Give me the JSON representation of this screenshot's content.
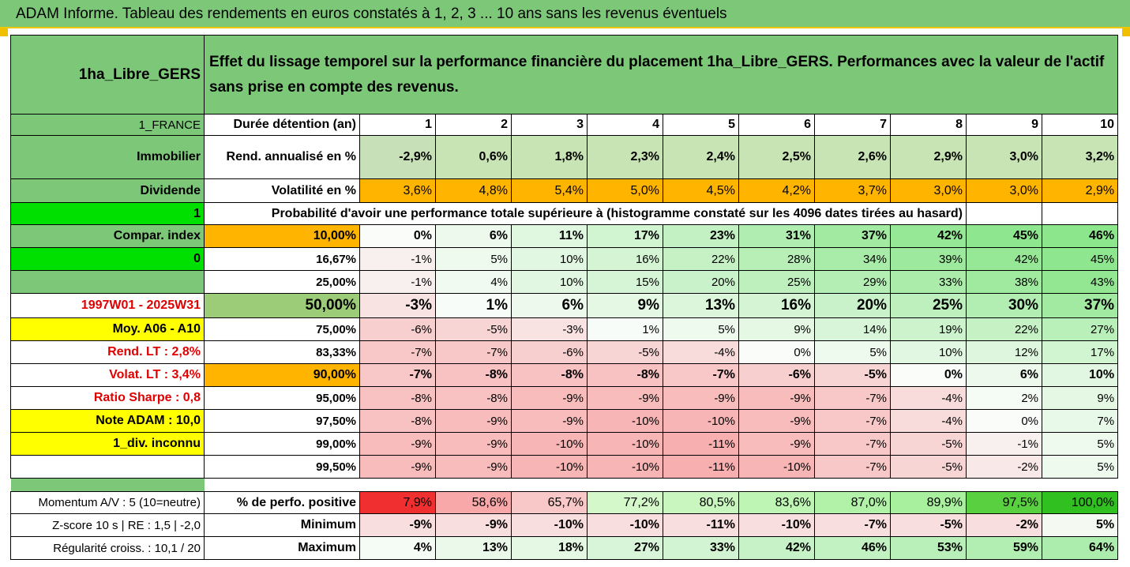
{
  "title": "ADAM Informe. Tableau des rendements en euros constatés à 1, 2, 3 ... 10 ans sans les revenus éventuels",
  "asset_name": "1ha_Libre_GERS",
  "description": "Effet du lissage temporel sur la performance financière du placement 1ha_Libre_GERS. Performances avec la valeur de l'actif sans prise en compte des revenus.",
  "left": {
    "country": "1_FRANCE",
    "category": "Immobilier",
    "dividend_label": "Dividende",
    "value_1": "1",
    "compar_index": "Compar. index",
    "value_0": "0",
    "period": "1997W01 - 2025W31",
    "moy": "Moy. A06 - A10",
    "rend_lt": "Rend. LT :    2,8%",
    "volat_lt": "Volat. LT :    3,4%",
    "sharpe": "Ratio Sharpe :    0,8",
    "note": "Note ADAM : 10,0",
    "div": "1_div. inconnu",
    "momentum": "Momentum A/V : 5 (10=neutre)",
    "zscore": "Z-score 10 s  |  RE : 1,5  |  -2,0",
    "regularite": "Régularité croiss. : 10,1 / 20"
  },
  "duration_label": "Durée détention (an)",
  "years": [
    "1",
    "2",
    "3",
    "4",
    "5",
    "6",
    "7",
    "8",
    "9",
    "10"
  ],
  "rend_label": "Rend. annualisé en %",
  "rend": [
    "-2,9%",
    "0,6%",
    "1,8%",
    "2,3%",
    "2,4%",
    "2,5%",
    "2,6%",
    "2,9%",
    "3,0%",
    "3,2%"
  ],
  "vol_label": "Volatilité en %",
  "vol": [
    "3,6%",
    "4,8%",
    "5,4%",
    "5,0%",
    "4,5%",
    "4,2%",
    "3,7%",
    "3,0%",
    "3,0%",
    "2,9%"
  ],
  "prob_label": "Probabilité d'avoir une performance totale supérieure à (histogramme constaté sur les 4096 dates tirées au hasard)",
  "quantiles": [
    {
      "p": "10,00%",
      "v": [
        "0%",
        "6%",
        "11%",
        "17%",
        "23%",
        "31%",
        "37%",
        "42%",
        "45%",
        "46%"
      ]
    },
    {
      "p": "16,67%",
      "v": [
        "-1%",
        "5%",
        "10%",
        "16%",
        "22%",
        "28%",
        "34%",
        "39%",
        "42%",
        "45%"
      ]
    },
    {
      "p": "25,00%",
      "v": [
        "-1%",
        "4%",
        "10%",
        "15%",
        "20%",
        "25%",
        "29%",
        "33%",
        "38%",
        "43%"
      ]
    },
    {
      "p": "50,00%",
      "v": [
        "-3%",
        "1%",
        "6%",
        "9%",
        "13%",
        "16%",
        "20%",
        "25%",
        "30%",
        "37%"
      ]
    },
    {
      "p": "75,00%",
      "v": [
        "-6%",
        "-5%",
        "-3%",
        "1%",
        "5%",
        "9%",
        "14%",
        "19%",
        "22%",
        "27%"
      ]
    },
    {
      "p": "83,33%",
      "v": [
        "-7%",
        "-7%",
        "-6%",
        "-5%",
        "-4%",
        "0%",
        "5%",
        "10%",
        "12%",
        "17%"
      ]
    },
    {
      "p": "90,00%",
      "v": [
        "-7%",
        "-8%",
        "-8%",
        "-8%",
        "-7%",
        "-6%",
        "-5%",
        "0%",
        "6%",
        "10%"
      ]
    },
    {
      "p": "95,00%",
      "v": [
        "-8%",
        "-8%",
        "-9%",
        "-9%",
        "-9%",
        "-9%",
        "-7%",
        "-4%",
        "2%",
        "9%"
      ]
    },
    {
      "p": "97,50%",
      "v": [
        "-8%",
        "-9%",
        "-9%",
        "-10%",
        "-10%",
        "-9%",
        "-7%",
        "-4%",
        "0%",
        "7%"
      ]
    },
    {
      "p": "99,00%",
      "v": [
        "-9%",
        "-9%",
        "-10%",
        "-10%",
        "-11%",
        "-9%",
        "-7%",
        "-5%",
        "-1%",
        "5%"
      ]
    },
    {
      "p": "99,50%",
      "v": [
        "-9%",
        "-9%",
        "-10%",
        "-10%",
        "-11%",
        "-10%",
        "-7%",
        "-5%",
        "-2%",
        "5%"
      ]
    }
  ],
  "pos_label": "% de perfo. positive",
  "pos": [
    "7,9%",
    "58,6%",
    "65,7%",
    "77,2%",
    "80,5%",
    "83,6%",
    "87,0%",
    "89,9%",
    "97,5%",
    "100,0%"
  ],
  "min_label": "Minimum",
  "min": [
    "-9%",
    "-9%",
    "-10%",
    "-10%",
    "-11%",
    "-10%",
    "-7%",
    "-5%",
    "-2%",
    "5%"
  ],
  "max_label": "Maximum",
  "max": [
    "4%",
    "13%",
    "18%",
    "27%",
    "33%",
    "42%",
    "46%",
    "53%",
    "59%",
    "64%"
  ],
  "colors": {
    "green_header": "#7cc878",
    "orange": "#ffb400",
    "yellow": "#ffff00",
    "bright_green": "#00e000",
    "red_text": "#e00000"
  }
}
